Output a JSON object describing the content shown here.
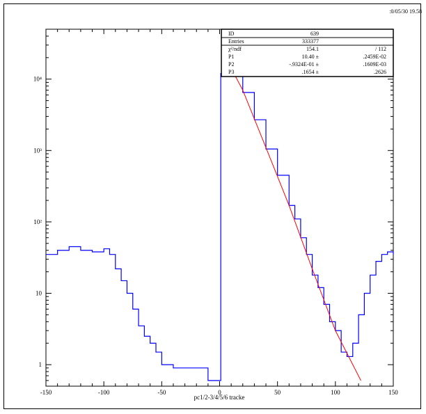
{
  "header": {
    "date": ":0/05/30",
    "time": "19.58"
  },
  "colors": {
    "histogram": "#0000ff",
    "fit": "#ff0000",
    "axis": "#000000"
  },
  "stats_box": {
    "rows": [
      {
        "label": "ID",
        "value": "639",
        "error": ""
      },
      {
        "label": "Entries",
        "value": "333377",
        "error": ""
      },
      {
        "label": "χ²/ndf",
        "value": "154.1",
        "error": "/   112"
      },
      {
        "label": "P1",
        "value": "10.40 ±",
        "error": ".2459E-02"
      },
      {
        "label": "P2",
        "value": "-.9324E-01 ±",
        "error": ".1609E-03"
      },
      {
        "label": "P3",
        "value": ".1654 ±",
        "error": ".2626"
      }
    ]
  },
  "chart_data": {
    "type": "line",
    "title": "",
    "xlabel": "pc1/2-3/4/5/6 tracke",
    "ylabel": "",
    "xlim": [
      -150,
      150
    ],
    "ylim": [
      0.5,
      50000
    ],
    "yscale": "log",
    "x_ticks": [
      -150,
      -100,
      -50,
      0,
      50,
      100,
      150
    ],
    "x_tick_labels": [
      "-150",
      "-100",
      "-50",
      "0",
      "50",
      "100",
      "150"
    ],
    "y_ticks": [
      1,
      10,
      100,
      1000,
      10000
    ],
    "y_tick_labels": [
      "1",
      "10",
      "10²",
      "10³",
      "10⁴"
    ],
    "histogram": {
      "style": "step",
      "points": [
        [
          -150,
          35
        ],
        [
          -140,
          40
        ],
        [
          -130,
          45
        ],
        [
          -120,
          40
        ],
        [
          -110,
          38
        ],
        [
          -100,
          42
        ],
        [
          -95,
          35
        ],
        [
          -90,
          22
        ],
        [
          -85,
          15
        ],
        [
          -80,
          10
        ],
        [
          -75,
          6
        ],
        [
          -70,
          3.5
        ],
        [
          -65,
          2.5
        ],
        [
          -60,
          2
        ],
        [
          -55,
          1.5
        ],
        [
          -50,
          1
        ],
        [
          -40,
          0.9
        ],
        [
          -30,
          0.9
        ],
        [
          -20,
          0.9
        ],
        [
          -10,
          0.6
        ],
        [
          0,
          0.6
        ],
        [
          1,
          12000
        ],
        [
          2,
          27000
        ],
        [
          5,
          22000
        ],
        [
          10,
          16000
        ],
        [
          20,
          6500
        ],
        [
          30,
          2700
        ],
        [
          40,
          1050
        ],
        [
          50,
          450
        ],
        [
          60,
          170
        ],
        [
          65,
          110
        ],
        [
          70,
          60
        ],
        [
          75,
          35
        ],
        [
          80,
          18
        ],
        [
          85,
          12
        ],
        [
          90,
          7
        ],
        [
          95,
          4
        ],
        [
          100,
          3
        ],
        [
          105,
          1.5
        ],
        [
          110,
          1.3
        ],
        [
          115,
          2
        ],
        [
          120,
          5
        ],
        [
          125,
          10
        ],
        [
          130,
          18
        ],
        [
          135,
          28
        ],
        [
          140,
          35
        ],
        [
          145,
          38
        ],
        [
          150,
          35
        ]
      ]
    },
    "fit": {
      "name": "",
      "points": [
        [
          2,
          25000
        ],
        [
          20,
          7000
        ],
        [
          40,
          1100
        ],
        [
          60,
          170
        ],
        [
          80,
          22
        ],
        [
          100,
          3
        ],
        [
          122,
          0.6
        ]
      ]
    }
  }
}
